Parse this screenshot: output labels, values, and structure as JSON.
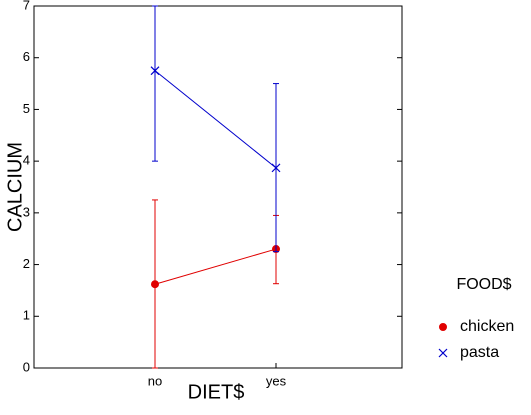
{
  "chart_data": {
    "type": "line",
    "xlabel": "DIET$",
    "ylabel": "CALCIUM",
    "categories": [
      "no",
      "yes"
    ],
    "ylim": [
      0,
      7
    ],
    "yticks": [
      0,
      1,
      2,
      3,
      4,
      5,
      6,
      7
    ],
    "grid": false,
    "legend": {
      "title": "FOOD$",
      "placement": "right"
    },
    "series": [
      {
        "name": "chicken",
        "marker": "filled-circle",
        "color": "#e00000",
        "values": [
          1.62,
          2.3
        ],
        "error_low": [
          0.0,
          1.63
        ],
        "error_high": [
          3.25,
          2.95
        ]
      },
      {
        "name": "pasta",
        "marker": "cross",
        "color": "#0000cc",
        "values": [
          5.75,
          3.87
        ],
        "error_low": [
          4.0,
          2.25
        ],
        "error_high": [
          7.0,
          5.5
        ]
      }
    ]
  }
}
